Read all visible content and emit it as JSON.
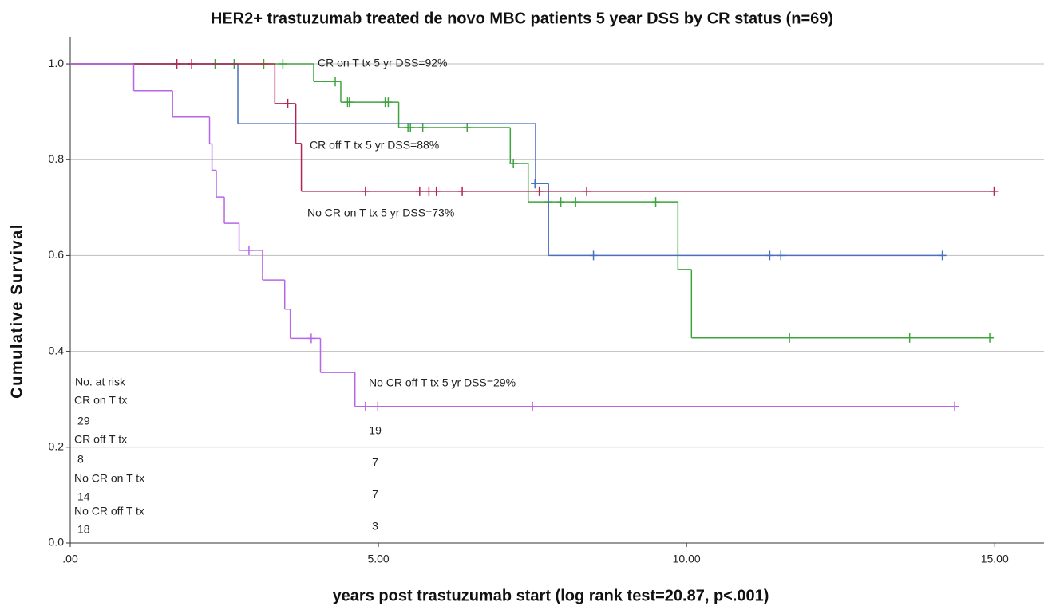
{
  "chart_data": {
    "type": "km",
    "title": "HER2+ trastuzumab treated de novo MBC patients 5 year DSS by CR status (n=69)",
    "xlabel": "years post trastuzumab start (log rank test=20.87, p<.001)",
    "ylabel": "Cumulative Survival",
    "xlim": [
      0,
      15.8
    ],
    "ylim": [
      0,
      1.055
    ],
    "xticks": [
      {
        "value": 0,
        "label": ".00"
      },
      {
        "value": 5,
        "label": "5.00"
      },
      {
        "value": 10,
        "label": "10.00"
      },
      {
        "value": 15,
        "label": "15.00"
      }
    ],
    "yticks": [
      {
        "value": 0,
        "label": "0.0"
      },
      {
        "value": 0.2,
        "label": "0.2"
      },
      {
        "value": 0.4,
        "label": "0.4"
      },
      {
        "value": 0.6,
        "label": "0.6"
      },
      {
        "value": 0.8,
        "label": "0.8"
      },
      {
        "value": 1,
        "label": "1.0"
      }
    ],
    "grid": true,
    "series": [
      {
        "name": "CR on T tx",
        "color": "#3fa33f",
        "x": [
          0,
          3.95,
          4.39,
          5.33,
          7.14,
          7.43,
          9.86,
          10.08
        ],
        "values": [
          1,
          0.963,
          0.92,
          0.867,
          0.792,
          0.712,
          0.571,
          0.428
        ],
        "censored_x": [
          2.35,
          2.66,
          3.14,
          3.45,
          4.3,
          4.5,
          4.53,
          5.11,
          5.16,
          5.48,
          5.52,
          5.72,
          6.44,
          7.19,
          7.76,
          7.96,
          8.2,
          9.5,
          11.67,
          13.62,
          14.92
        ],
        "censored_values": [
          1,
          1,
          1,
          1,
          0.963,
          0.92,
          0.92,
          0.92,
          0.92,
          0.867,
          0.867,
          0.867,
          0.867,
          0.792,
          0.712,
          0.712,
          0.712,
          0.712,
          0.428,
          0.428,
          0.428
        ]
      },
      {
        "name": "CR off T tx",
        "color": "#4a6fbf",
        "x": [
          0,
          2.72,
          7.55,
          7.76
        ],
        "values": [
          1,
          0.875,
          0.75,
          0.6
        ],
        "censored_x": [
          7.54,
          8.49,
          11.35,
          11.53,
          14.15
        ],
        "censored_values": [
          0.75,
          0.6,
          0.6,
          0.6,
          0.6
        ]
      },
      {
        "name": "No CR on T tx",
        "color": "#b0264f",
        "x": [
          0,
          3.32,
          3.66,
          3.75
        ],
        "values": [
          1,
          0.917,
          0.834,
          0.734
        ],
        "censored_x": [
          1.73,
          1.97,
          3.53,
          4.79,
          5.67,
          5.82,
          5.94,
          6.36,
          7.61,
          8.38,
          14.99
        ],
        "censored_values": [
          1,
          1,
          0.917,
          0.734,
          0.734,
          0.734,
          0.734,
          0.734,
          0.734,
          0.734,
          0.734
        ]
      },
      {
        "name": "No CR off T tx",
        "color": "#b866e8",
        "x": [
          0,
          1.03,
          1.66,
          2.26,
          2.3,
          2.37,
          2.5,
          2.74,
          3.12,
          3.48,
          3.57,
          4.06,
          4.62
        ],
        "values": [
          1,
          0.944,
          0.889,
          0.833,
          0.778,
          0.722,
          0.667,
          0.611,
          0.549,
          0.488,
          0.427,
          0.356,
          0.285
        ],
        "censored_x": [
          2.9,
          3.91,
          4.79,
          4.99,
          7.5,
          14.35
        ],
        "censored_values": [
          0.611,
          0.427,
          0.285,
          0.285,
          0.285,
          0.285
        ]
      }
    ],
    "annotations": [
      "CR on T tx 5 yr DSS=92%",
      "CR off T tx 5 yr DSS=88%",
      "No CR on T tx 5 yr DSS=73%",
      "No CR off T tx 5 yr DSS=29%"
    ],
    "risk_table": {
      "title": "No. at risk",
      "rows": [
        {
          "label": "CR on T tx",
          "start": "29",
          "year5": "19"
        },
        {
          "label": "CR off T tx",
          "start": "8",
          "year5": "7"
        },
        {
          "label": "No CR on T tx",
          "start": "14",
          "year5": "7"
        },
        {
          "label": "No CR off T tx",
          "start": "18",
          "year5": "3"
        }
      ]
    }
  }
}
